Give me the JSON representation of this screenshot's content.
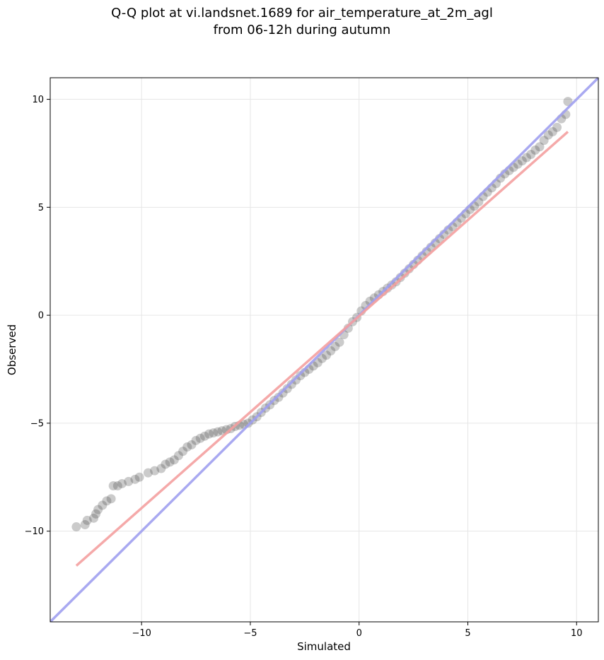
{
  "chart_data": {
    "type": "scatter",
    "title_lines": [
      "Q-Q plot at vi.landsnet.1689 for air_temperature_at_2m_agl",
      "from 06-12h during autumn"
    ],
    "xlabel": "Simulated",
    "ylabel": "Observed",
    "xlim": [
      -14.2,
      11.0
    ],
    "ylim": [
      -14.2,
      11.0
    ],
    "xticks": [
      -10,
      -5,
      0,
      5,
      10
    ],
    "yticks": [
      -10,
      -5,
      0,
      5,
      10
    ],
    "xtick_labels": [
      "−10",
      "−5",
      "0",
      "5",
      "10"
    ],
    "ytick_labels": [
      "−10",
      "−5",
      "0",
      "5",
      "10"
    ],
    "grid": true,
    "series": [
      {
        "kind": "points",
        "color": "#444444",
        "points": [
          [
            -13.0,
            -9.8
          ],
          [
            -12.6,
            -9.7
          ],
          [
            -12.5,
            -9.5
          ],
          [
            -12.2,
            -9.4
          ],
          [
            -12.1,
            -9.2
          ],
          [
            -12.0,
            -9.0
          ],
          [
            -11.8,
            -8.8
          ],
          [
            -11.6,
            -8.6
          ],
          [
            -11.4,
            -8.5
          ],
          [
            -11.3,
            -7.9
          ],
          [
            -11.1,
            -7.9
          ],
          [
            -10.9,
            -7.8
          ],
          [
            -10.6,
            -7.7
          ],
          [
            -10.3,
            -7.6
          ],
          [
            -10.1,
            -7.5
          ],
          [
            -9.7,
            -7.3
          ],
          [
            -9.4,
            -7.2
          ],
          [
            -9.1,
            -7.1
          ],
          [
            -8.9,
            -6.9
          ],
          [
            -8.7,
            -6.8
          ],
          [
            -8.5,
            -6.7
          ],
          [
            -8.3,
            -6.5
          ],
          [
            -8.1,
            -6.3
          ],
          [
            -7.9,
            -6.1
          ],
          [
            -7.7,
            -6.0
          ],
          [
            -7.5,
            -5.8
          ],
          [
            -7.3,
            -5.7
          ],
          [
            -7.1,
            -5.6
          ],
          [
            -6.9,
            -5.5
          ],
          [
            -6.7,
            -5.45
          ],
          [
            -6.5,
            -5.4
          ],
          [
            -6.3,
            -5.35
          ],
          [
            -6.1,
            -5.3
          ],
          [
            -5.9,
            -5.25
          ],
          [
            -5.7,
            -5.15
          ],
          [
            -5.5,
            -5.1
          ],
          [
            -5.3,
            -5.05
          ],
          [
            -5.1,
            -5.0
          ],
          [
            -4.9,
            -4.85
          ],
          [
            -4.7,
            -4.7
          ],
          [
            -4.5,
            -4.5
          ],
          [
            -4.3,
            -4.3
          ],
          [
            -4.1,
            -4.15
          ],
          [
            -3.9,
            -3.95
          ],
          [
            -3.7,
            -3.8
          ],
          [
            -3.5,
            -3.6
          ],
          [
            -3.3,
            -3.4
          ],
          [
            -3.1,
            -3.2
          ],
          [
            -2.9,
            -3.0
          ],
          [
            -2.7,
            -2.8
          ],
          [
            -2.5,
            -2.65
          ],
          [
            -2.3,
            -2.5
          ],
          [
            -2.1,
            -2.35
          ],
          [
            -1.9,
            -2.2
          ],
          [
            -1.7,
            -2.0
          ],
          [
            -1.5,
            -1.85
          ],
          [
            -1.3,
            -1.65
          ],
          [
            -1.1,
            -1.45
          ],
          [
            -0.9,
            -1.25
          ],
          [
            -0.7,
            -0.9
          ],
          [
            -0.5,
            -0.6
          ],
          [
            -0.3,
            -0.3
          ],
          [
            -0.1,
            -0.1
          ],
          [
            0.1,
            0.2
          ],
          [
            0.3,
            0.45
          ],
          [
            0.5,
            0.65
          ],
          [
            0.7,
            0.8
          ],
          [
            0.9,
            0.95
          ],
          [
            1.1,
            1.1
          ],
          [
            1.3,
            1.25
          ],
          [
            1.5,
            1.4
          ],
          [
            1.7,
            1.55
          ],
          [
            1.9,
            1.75
          ],
          [
            2.1,
            1.95
          ],
          [
            2.3,
            2.15
          ],
          [
            2.5,
            2.35
          ],
          [
            2.7,
            2.55
          ],
          [
            2.9,
            2.75
          ],
          [
            3.1,
            2.95
          ],
          [
            3.3,
            3.15
          ],
          [
            3.5,
            3.35
          ],
          [
            3.7,
            3.55
          ],
          [
            3.9,
            3.75
          ],
          [
            4.1,
            3.95
          ],
          [
            4.3,
            4.1
          ],
          [
            4.5,
            4.3
          ],
          [
            4.7,
            4.5
          ],
          [
            4.9,
            4.7
          ],
          [
            5.1,
            4.9
          ],
          [
            5.3,
            5.05
          ],
          [
            5.5,
            5.25
          ],
          [
            5.7,
            5.5
          ],
          [
            5.9,
            5.7
          ],
          [
            6.1,
            5.9
          ],
          [
            6.3,
            6.1
          ],
          [
            6.5,
            6.35
          ],
          [
            6.7,
            6.55
          ],
          [
            6.9,
            6.7
          ],
          [
            7.1,
            6.85
          ],
          [
            7.3,
            7.0
          ],
          [
            7.5,
            7.15
          ],
          [
            7.7,
            7.3
          ],
          [
            7.9,
            7.45
          ],
          [
            8.1,
            7.65
          ],
          [
            8.3,
            7.8
          ],
          [
            8.5,
            8.1
          ],
          [
            8.7,
            8.35
          ],
          [
            8.9,
            8.5
          ],
          [
            9.1,
            8.7
          ],
          [
            9.3,
            9.1
          ],
          [
            9.5,
            9.3
          ],
          [
            9.6,
            9.9
          ]
        ]
      },
      {
        "kind": "line",
        "color": "#a0a0f0",
        "points": [
          [
            -14.2,
            -14.2
          ],
          [
            11.0,
            11.0
          ]
        ]
      },
      {
        "kind": "line",
        "color": "#f4a0a0",
        "points": [
          [
            -13.0,
            -11.6
          ],
          [
            9.6,
            8.5
          ]
        ]
      }
    ]
  }
}
